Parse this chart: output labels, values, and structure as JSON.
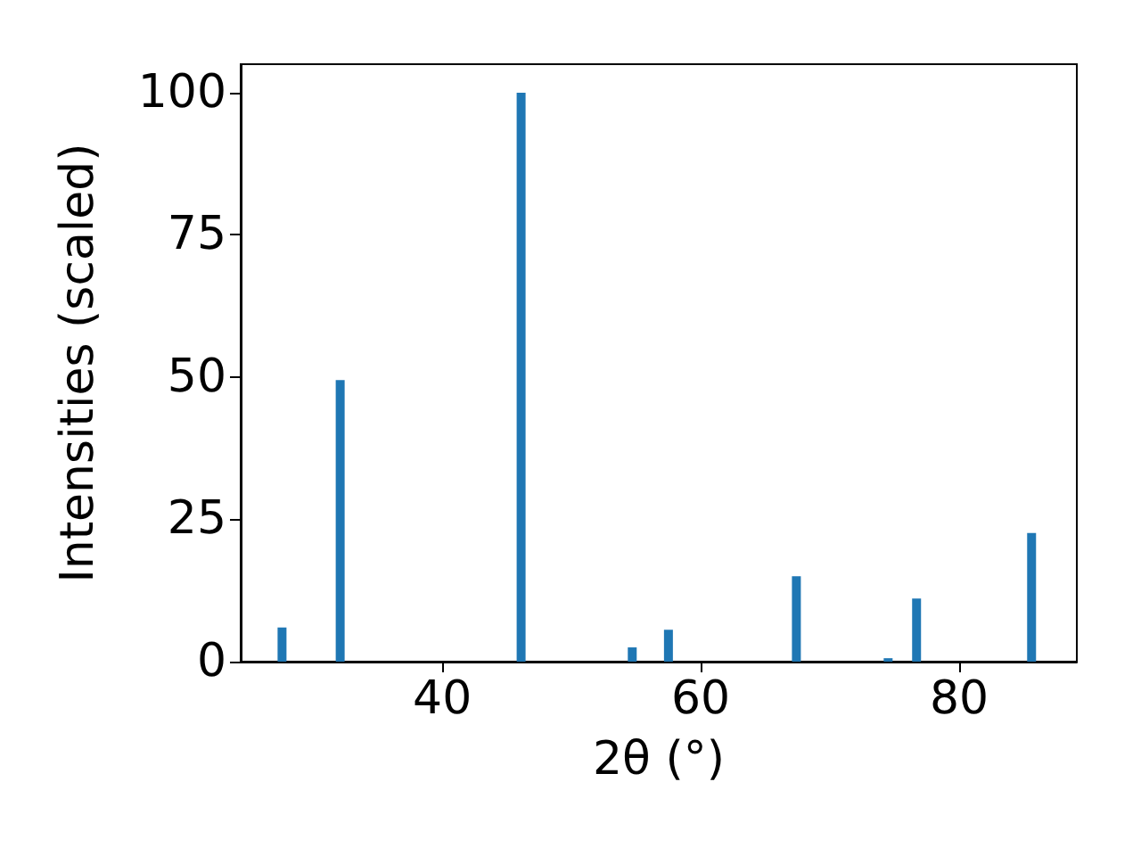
{
  "chart_data": {
    "type": "bar",
    "xlabel": "2θ (°)",
    "ylabel": "Intensities (scaled)",
    "x": [
      27.6,
      32.1,
      46.1,
      54.7,
      57.5,
      67.4,
      74.5,
      76.7,
      85.6
    ],
    "values": [
      6,
      49.5,
      100,
      2.5,
      5.6,
      15,
      0.6,
      11.1,
      22.6
    ],
    "color": "#1f77b4",
    "xlim": [
      24.4,
      89.1
    ],
    "xticks": [
      40,
      60,
      80
    ],
    "ylim": [
      0,
      105
    ],
    "yticks": [
      0,
      25,
      50,
      75,
      100
    ],
    "grid": false
  }
}
